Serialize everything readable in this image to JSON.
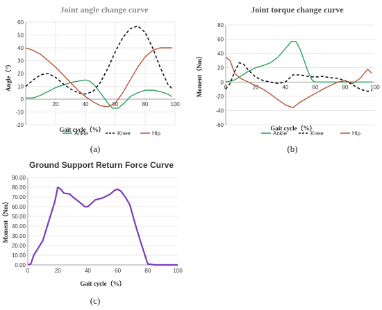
{
  "colors": {
    "ankle": "#2e9e5b",
    "knee": "#111111",
    "hip": "#b5543a",
    "force": "#7a3db8",
    "grid": "#d4d4d4",
    "title_a": "#8a8a8a",
    "title_b": "#444444",
    "title_c": "#333333"
  },
  "panels": [
    "(a)",
    "(b)",
    "(c)"
  ],
  "chart_data": [
    {
      "type": "line",
      "title": "Joint angle change curve",
      "xlabel": "Gait cycle（%）",
      "ylabel": "Angle（°）",
      "xlim": [
        0,
        100
      ],
      "ylim": [
        -20,
        60
      ],
      "xticks": [
        "20",
        "40",
        "60",
        "80",
        "100"
      ],
      "yticks": [
        "-20",
        "-10",
        "0",
        "10",
        "20",
        "30",
        "40",
        "50",
        "60"
      ],
      "grid": true,
      "legend_position": "bottom",
      "series": [
        {
          "name": "Ankle",
          "style": "solid",
          "color": "ankle",
          "x": [
            0,
            5,
            10,
            15,
            20,
            25,
            30,
            35,
            40,
            43,
            46,
            50,
            55,
            58,
            62,
            66,
            70,
            75,
            80,
            85,
            90,
            95,
            98
          ],
          "y": [
            1,
            1,
            3,
            6,
            9,
            11,
            13,
            14,
            15,
            14,
            11,
            5,
            -3,
            -7,
            -7,
            -3,
            2,
            5,
            7,
            7,
            6,
            4,
            2
          ]
        },
        {
          "name": "Knee",
          "style": "dashed",
          "color": "knee",
          "x": [
            0,
            5,
            10,
            15,
            20,
            25,
            30,
            35,
            40,
            45,
            50,
            55,
            60,
            65,
            70,
            75,
            80,
            85,
            90,
            95,
            98
          ],
          "y": [
            10,
            15,
            19,
            20,
            17,
            12,
            8,
            5,
            4,
            6,
            13,
            24,
            37,
            48,
            55,
            57,
            52,
            40,
            25,
            12,
            8
          ]
        },
        {
          "name": "Hip",
          "style": "solid",
          "color": "hip",
          "x": [
            0,
            5,
            10,
            15,
            20,
            25,
            30,
            35,
            40,
            45,
            50,
            55,
            60,
            65,
            70,
            75,
            80,
            85,
            90,
            95,
            98
          ],
          "y": [
            40,
            38,
            35,
            30,
            25,
            19,
            13,
            7,
            2,
            -2,
            -5,
            -6,
            -3,
            5,
            15,
            25,
            33,
            38,
            40,
            40,
            40
          ]
        }
      ]
    },
    {
      "type": "line",
      "title": "Joint torque change curve",
      "xlabel": "Gait cycle（%）",
      "ylabel": "Moment（Nm）",
      "xlim": [
        0,
        100
      ],
      "ylim": [
        -60,
        80
      ],
      "xticks": [
        "0",
        "20",
        "40",
        "60",
        "80",
        "100"
      ],
      "yticks": [
        "-60",
        "-40",
        "-20",
        "0",
        "20",
        "40",
        "60",
        "80"
      ],
      "grid": true,
      "legend_position": "bottom",
      "series": [
        {
          "name": "Ankle",
          "style": "solid",
          "color": "ankle",
          "x": [
            0,
            5,
            10,
            15,
            20,
            25,
            30,
            35,
            40,
            44,
            47,
            50,
            55,
            58,
            60,
            65,
            70,
            80,
            90,
            98
          ],
          "y": [
            0,
            2,
            8,
            15,
            20,
            23,
            27,
            35,
            47,
            57,
            57,
            45,
            15,
            2,
            0,
            0,
            0,
            0,
            0,
            0
          ]
        },
        {
          "name": "Knee",
          "style": "dashed",
          "color": "knee",
          "x": [
            0,
            3,
            6,
            9,
            12,
            15,
            20,
            25,
            30,
            35,
            40,
            45,
            50,
            55,
            60,
            65,
            70,
            75,
            80,
            85,
            90,
            95,
            98
          ],
          "y": [
            -10,
            -2,
            15,
            27,
            25,
            17,
            7,
            2,
            0,
            -2,
            0,
            10,
            10,
            8,
            7,
            8,
            6,
            5,
            2,
            -4,
            -10,
            -13,
            -12
          ]
        },
        {
          "name": "Hip",
          "style": "solid",
          "color": "hip",
          "x": [
            0,
            3,
            6,
            10,
            15,
            20,
            25,
            30,
            35,
            40,
            45,
            50,
            55,
            60,
            65,
            70,
            75,
            80,
            85,
            90,
            95,
            98
          ],
          "y": [
            35,
            30,
            12,
            5,
            0,
            -5,
            -10,
            -17,
            -25,
            -32,
            -36,
            -28,
            -22,
            -16,
            -10,
            -5,
            0,
            2,
            -2,
            5,
            18,
            12
          ]
        }
      ]
    },
    {
      "type": "line",
      "title": "Ground Support Return Force Curve",
      "xlabel": "Gait cycle（%）",
      "ylabel": "Moment（Nm）",
      "xlim": [
        0,
        100
      ],
      "ylim": [
        0,
        90
      ],
      "xticks": [
        "0",
        "20",
        "40",
        "60",
        "80",
        "100"
      ],
      "yticks": [
        "0.00",
        "10.00",
        "20.00",
        "30.00",
        "40.00",
        "50.00",
        "60.00",
        "70.00",
        "80.00",
        "90.00"
      ],
      "grid": true,
      "series": [
        {
          "name": "",
          "style": "solid",
          "color": "force",
          "x": [
            0,
            2,
            4,
            10,
            15,
            18,
            20,
            22,
            24,
            28,
            30,
            35,
            38,
            40,
            45,
            50,
            55,
            58,
            60,
            62,
            65,
            68,
            72,
            76,
            80,
            85,
            90,
            95,
            100
          ],
          "y": [
            0,
            1,
            10,
            25,
            50,
            65,
            80,
            78,
            74,
            73,
            70,
            64,
            60,
            60,
            67,
            69,
            73,
            77,
            78,
            76,
            70,
            62,
            40,
            20,
            1,
            0,
            0,
            0,
            0
          ]
        }
      ]
    }
  ]
}
